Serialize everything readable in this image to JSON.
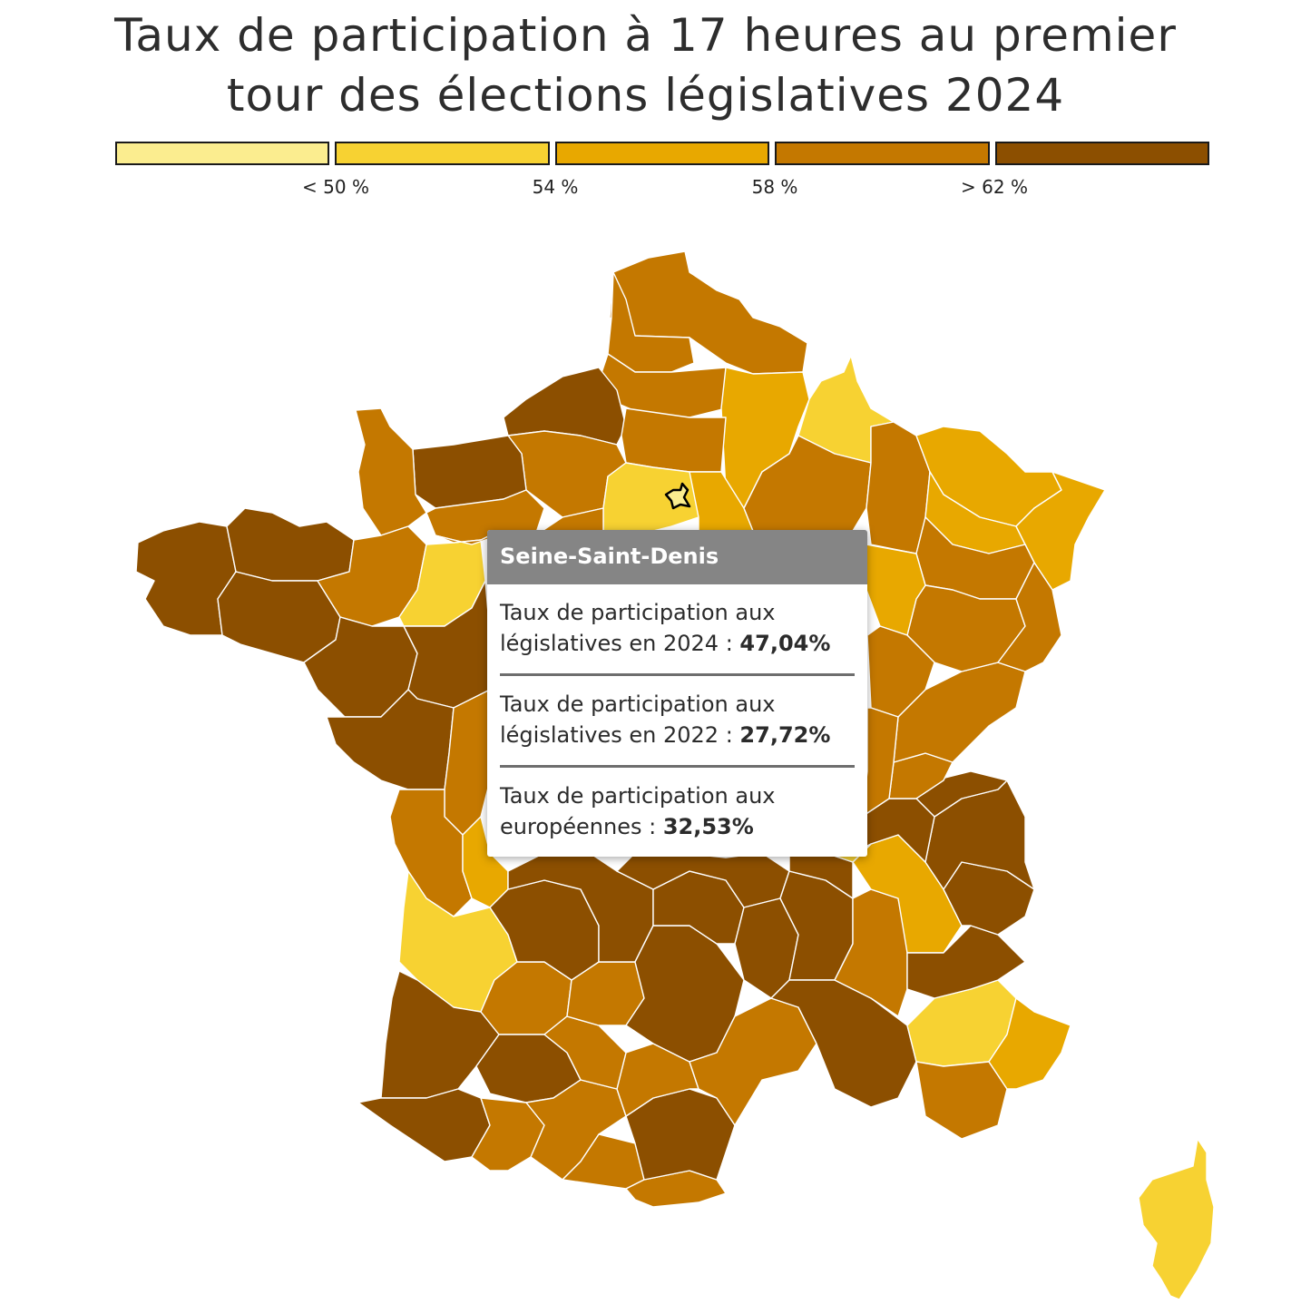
{
  "title_line1": "Taux de participation à 17 heures au premier",
  "title_line2": "tour des élections législatives 2024",
  "legend": {
    "colors": [
      "#fbed8f",
      "#f7d232",
      "#e8a800",
      "#c47800",
      "#8c4f00"
    ],
    "ticks": [
      "< 50 %",
      "54 %",
      "58 %",
      "> 62 %"
    ]
  },
  "tooltip": {
    "department": "Seine-Saint-Denis",
    "rows": [
      {
        "label": "Taux de participation aux législatives en 2024 : ",
        "value": "47,04%"
      },
      {
        "label": "Taux de participation aux législatives en 2022 : ",
        "value": "27,72%"
      },
      {
        "label": "Taux de participation aux européennes : ",
        "value": "32,53%"
      }
    ]
  }
}
